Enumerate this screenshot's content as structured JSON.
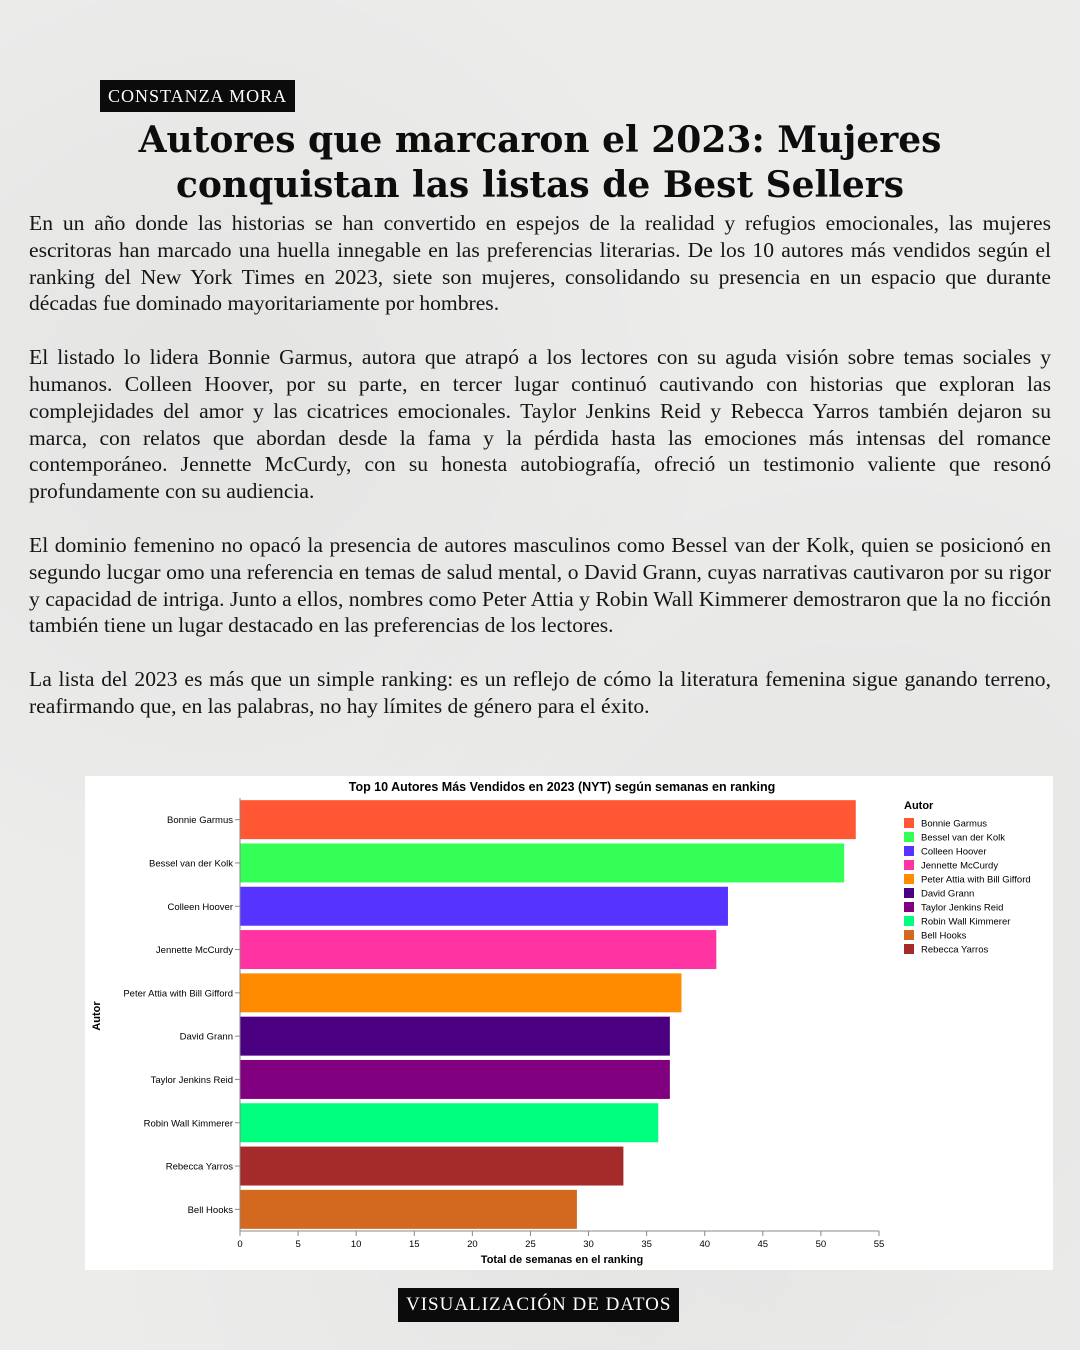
{
  "author_tag": "CONSTANZA MORA",
  "headline": "Autores que marcaron el 2023: Mujeres conquistan las listas de Best Sellers",
  "paragraphs": [
    "En un año donde las historias se han convertido en espejos de la realidad y refugios emocionales, las mujeres escritoras han marcado una huella innegable en las preferencias literarias. De los 10 autores más vendidos según el ranking del New York Times en 2023, siete son mujeres, consolidando su presencia en un espacio que durante décadas fue dominado mayoritariamente por hombres.",
    "El listado lo lidera Bonnie Garmus, autora que atrapó a los lectores con su aguda visión sobre temas sociales y humanos. Colleen Hoover, por su parte, en tercer lugar continuó cautivando con historias que exploran las complejidades del amor y las cicatrices emocionales. Taylor Jenkins Reid y Rebecca Yarros también dejaron su marca, con relatos que abordan desde la fama y la pérdida hasta las emociones más intensas del romance contemporáneo. Jennette McCurdy, con su honesta autobiografía, ofreció un testimonio valiente que resonó profundamente con su audiencia.",
    "El dominio femenino no opacó la presencia de autores masculinos como Bessel van der Kolk, quien se posicionó en segundo lucgar omo una referencia en temas de salud mental, o David Grann, cuyas narrativas cautivaron por su rigor y capacidad de intriga. Junto a ellos, nombres como Peter Attia y Robin Wall Kimmerer demostraron que la no ficción también tiene un lugar destacado en las preferencias de los lectores.",
    "La lista del 2023 es más que un simple ranking: es un reflejo de cómo la literatura femenina sigue ganando terreno, reafirmando que, en las palabras, no hay límites de género para el éxito."
  ],
  "footer_tag": "VISUALIZACIÓN DE DATOS",
  "chart_data": {
    "type": "bar",
    "orientation": "horizontal",
    "title": "Top 10 Autores Más Vendidos en 2023 (NYT) según semanas en ranking",
    "xlabel": "Total de semanas en el ranking",
    "ylabel": "Autor",
    "xlim": [
      0,
      55
    ],
    "xticks": [
      0,
      5,
      10,
      15,
      20,
      25,
      30,
      35,
      40,
      45,
      50,
      55
    ],
    "grid": false,
    "legend_title": "Autor",
    "legend_position": "right",
    "categories": [
      "Bonnie Garmus",
      "Bessel van der Kolk",
      "Colleen Hoover",
      "Jennette McCurdy",
      "Peter Attia with Bill Gifford",
      "David Grann",
      "Taylor Jenkins Reid",
      "Robin Wall Kimmerer",
      "Rebecca Yarros",
      "Bell Hooks"
    ],
    "values": [
      53,
      52,
      42,
      41,
      38,
      37,
      37,
      36,
      33,
      29
    ],
    "colors": [
      "#ff5733",
      "#33ff57",
      "#5733ff",
      "#ff33a1",
      "#ff8c00",
      "#4b0082",
      "#800080",
      "#00ff7f",
      "#a52a2a",
      "#d2691e"
    ],
    "legend": [
      {
        "label": "Bonnie Garmus",
        "color": "#ff5733"
      },
      {
        "label": "Bessel van der Kolk",
        "color": "#33ff57"
      },
      {
        "label": "Colleen Hoover",
        "color": "#5733ff"
      },
      {
        "label": "Jennette McCurdy",
        "color": "#ff33a1"
      },
      {
        "label": "Peter Attia with Bill Gifford",
        "color": "#ff8c00"
      },
      {
        "label": "David Grann",
        "color": "#4b0082"
      },
      {
        "label": "Taylor Jenkins Reid",
        "color": "#800080"
      },
      {
        "label": "Robin Wall Kimmerer",
        "color": "#00ff7f"
      },
      {
        "label": "Bell Hooks",
        "color": "#d2691e"
      },
      {
        "label": "Rebecca Yarros",
        "color": "#a52a2a"
      }
    ]
  }
}
